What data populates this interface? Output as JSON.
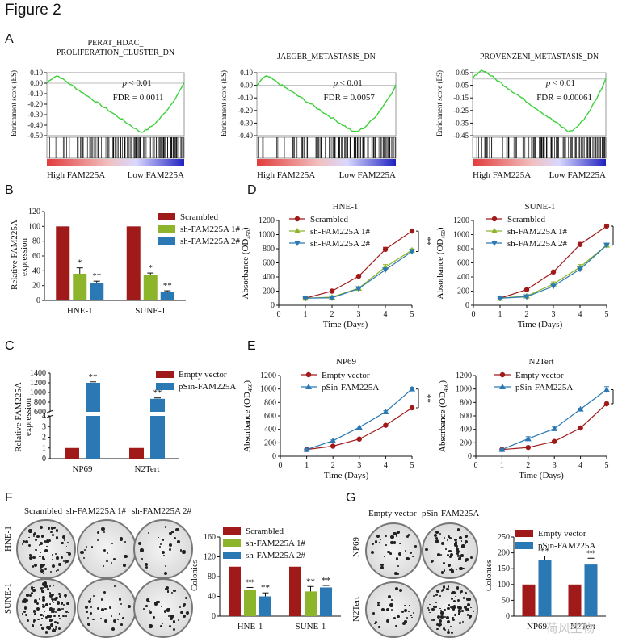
{
  "figure_title": "Figure 2",
  "panels": {
    "A": "A",
    "B": "B",
    "C": "C",
    "D": "D",
    "E": "E",
    "F": "F",
    "G": "G"
  },
  "gsea": [
    {
      "title1": "PERAT_HDAC_",
      "title2": "PROLIFERATION_CLUSTER_DN",
      "yticks": [
        "0.10",
        "0.00",
        "-0.10",
        "-0.20",
        "-0.30",
        "-0.40",
        "-0.50"
      ],
      "ylim": [
        -0.5,
        0.1
      ],
      "p": "< 0.01",
      "fdr": "FDR = 0.0011",
      "high": "High FAM225A",
      "low": "Low FAM225A",
      "ylabel": "Enrichment score (ES)"
    },
    {
      "title1": "",
      "title2": "JAEGER_METASTASIS_DN",
      "yticks": [
        "0.10",
        "0.00",
        "-0.10",
        "-0.20",
        "-0.30",
        "-0.40"
      ],
      "ylim": [
        -0.4,
        0.1
      ],
      "p": "< 0.01",
      "fdr": "FDR = 0.0057",
      "high": "High FAM225A",
      "low": "Low FAM225A",
      "ylabel": "Enrichment score (ES)"
    },
    {
      "title1": "",
      "title2": "PROVENZENI_METASTASIS_DN",
      "yticks": [
        "0.05",
        "-0.05",
        "-0.15",
        "-0.25",
        "-0.35",
        "-0.45"
      ],
      "ylim": [
        -0.45,
        0.05
      ],
      "p": "< 0.01",
      "fdr": "FDR = 0.00061",
      "high": "High FAM225A",
      "low": "Low FAM225A",
      "ylabel": "Enrichment score (ES)"
    }
  ],
  "chart_data": [
    {
      "id": "B",
      "type": "bar",
      "ylabel": "Relative FAM225A expression",
      "categories": [
        "HNE-1",
        "SUNE-1"
      ],
      "ylim": [
        0,
        120
      ],
      "yticks": [
        0,
        20,
        40,
        60,
        80,
        100,
        120
      ],
      "series": [
        {
          "name": "Scrambled",
          "color": "#a01a1a",
          "values": [
            100,
            100
          ],
          "err": [
            0,
            0
          ],
          "sig": [
            "",
            ""
          ]
        },
        {
          "name": "sh-FAM225A 1#",
          "color": "#8db52b",
          "values": [
            36,
            34
          ],
          "err": [
            8,
            3
          ],
          "sig": [
            "*",
            "*"
          ]
        },
        {
          "name": "sh-FAM225A 2#",
          "color": "#2a78b4",
          "values": [
            23,
            12
          ],
          "err": [
            3,
            1
          ],
          "sig": [
            "**",
            "**"
          ]
        }
      ]
    },
    {
      "id": "C",
      "type": "bar",
      "ylabel": "Relative FAM225A expression",
      "categories": [
        "NP69",
        "N2Tert"
      ],
      "yticks_low": [
        "0",
        "1",
        "2",
        "3",
        "4"
      ],
      "yticks_high": [
        "600",
        "800",
        "1000",
        "1200",
        "1400"
      ],
      "series": [
        {
          "name": "Empty vector",
          "color": "#a01a1a",
          "values": [
            1,
            1
          ],
          "sig": [
            "",
            ""
          ]
        },
        {
          "name": "pSin-FAM225A",
          "color": "#2a78b4",
          "values": [
            1200,
            870
          ],
          "err": [
            20,
            18
          ],
          "sig": [
            "**",
            "**"
          ]
        }
      ]
    },
    {
      "id": "D1",
      "type": "line",
      "title": "HNE-1",
      "xlabel": "Time (Days)",
      "ylabel": "Absorbance (OD",
      "ylabel_sub": "450",
      "ylabel_end": ")",
      "x": [
        1,
        2,
        3,
        4,
        5
      ],
      "xlim": [
        0,
        5
      ],
      "ylim": [
        0,
        1200
      ],
      "sig": "**",
      "series": [
        {
          "name": "Scrambled",
          "color": "#a01a1a",
          "marker": "circle",
          "values": [
            100,
            200,
            410,
            790,
            1050
          ],
          "err": [
            10,
            12,
            15,
            30,
            20
          ]
        },
        {
          "name": "sh-FAM225A 1#",
          "color": "#8db52b",
          "marker": "triangle",
          "values": [
            100,
            115,
            240,
            540,
            780
          ],
          "err": [
            10,
            10,
            15,
            35,
            20
          ]
        },
        {
          "name": "sh-FAM225A 2#",
          "color": "#2a78b4",
          "marker": "tridown",
          "values": [
            100,
            105,
            235,
            500,
            760
          ],
          "err": [
            10,
            10,
            12,
            25,
            20
          ]
        }
      ]
    },
    {
      "id": "D2",
      "type": "line",
      "title": "SUNE-1",
      "xlabel": "Time (Days)",
      "ylabel": "Absorbance (OD",
      "ylabel_sub": "450",
      "ylabel_end": ")",
      "x": [
        1,
        2,
        3,
        4,
        5
      ],
      "xlim": [
        0,
        5
      ],
      "ylim": [
        0,
        1200
      ],
      "sig": "**",
      "series": [
        {
          "name": "Scrambled",
          "color": "#a01a1a",
          "marker": "circle",
          "values": [
            100,
            220,
            470,
            860,
            1120
          ],
          "err": [
            10,
            12,
            15,
            30,
            15
          ]
        },
        {
          "name": "sh-FAM225A 1#",
          "color": "#8db52b",
          "marker": "triangle",
          "values": [
            100,
            130,
            300,
            540,
            850
          ],
          "err": [
            10,
            12,
            30,
            35,
            20
          ]
        },
        {
          "name": "sh-FAM225A 2#",
          "color": "#2a78b4",
          "marker": "tridown",
          "values": [
            100,
            120,
            270,
            510,
            850
          ],
          "err": [
            10,
            10,
            20,
            25,
            20
          ]
        }
      ]
    },
    {
      "id": "E1",
      "type": "line",
      "title": "NP69",
      "xlabel": "Time (Days)",
      "ylabel": "Absorbance (OD",
      "ylabel_sub": "450",
      "ylabel_end": ")",
      "x": [
        1,
        2,
        3,
        4,
        5
      ],
      "xlim": [
        0,
        5
      ],
      "ylim": [
        0,
        1200
      ],
      "sig": "**",
      "series": [
        {
          "name": "Empty vector",
          "color": "#a01a1a",
          "marker": "circle",
          "values": [
            100,
            150,
            255,
            460,
            720
          ],
          "err": [
            8,
            10,
            12,
            15,
            15
          ]
        },
        {
          "name": "pSin-FAM225A",
          "color": "#2a78b4",
          "marker": "triangle",
          "values": [
            100,
            230,
            430,
            660,
            1000
          ],
          "err": [
            8,
            12,
            20,
            15,
            25
          ]
        }
      ]
    },
    {
      "id": "E2",
      "type": "line",
      "title": "N2Tert",
      "xlabel": "Time (Days)",
      "ylabel": "Absorbance (OD",
      "ylabel_sub": "450",
      "ylabel_end": ")",
      "x": [
        1,
        2,
        3,
        4,
        5
      ],
      "xlim": [
        0,
        5
      ],
      "ylim": [
        0,
        1200
      ],
      "sig": "**",
      "series": [
        {
          "name": "Empty vector",
          "color": "#a01a1a",
          "marker": "circle",
          "values": [
            100,
            130,
            220,
            420,
            780
          ],
          "err": [
            8,
            10,
            12,
            15,
            40
          ]
        },
        {
          "name": "pSin-FAM225A",
          "color": "#2a78b4",
          "marker": "triangle",
          "values": [
            100,
            260,
            410,
            700,
            990
          ],
          "err": [
            8,
            30,
            25,
            15,
            45
          ]
        }
      ]
    },
    {
      "id": "F",
      "type": "bar",
      "ylabel": "Colonies",
      "categories": [
        "HNE-1",
        "SUNE-1"
      ],
      "ylim": [
        0,
        160
      ],
      "yticks": [
        0,
        40,
        80,
        120,
        160
      ],
      "series": [
        {
          "name": "Scrambled",
          "color": "#a01a1a",
          "values": [
            100,
            100
          ],
          "err": [
            0,
            0
          ],
          "sig": [
            "",
            ""
          ]
        },
        {
          "name": "sh-FAM225A 1#",
          "color": "#8db52b",
          "values": [
            53,
            50
          ],
          "err": [
            5,
            10
          ],
          "sig": [
            "**",
            "**"
          ]
        },
        {
          "name": "sh-FAM225A 2#",
          "color": "#2a78b4",
          "values": [
            40,
            58
          ],
          "err": [
            7,
            4
          ],
          "sig": [
            "**",
            "**"
          ]
        }
      ]
    },
    {
      "id": "G",
      "type": "bar",
      "ylabel": "Colonies",
      "categories": [
        "NP69",
        "N2Tert"
      ],
      "ylim": [
        0,
        250
      ],
      "yticks": [
        0,
        50,
        100,
        150,
        200,
        250
      ],
      "series": [
        {
          "name": "Empty vector",
          "color": "#a01a1a",
          "values": [
            100,
            100
          ],
          "err": [
            0,
            0
          ],
          "sig": [
            "",
            ""
          ]
        },
        {
          "name": "pSin-FAM225A",
          "color": "#2a78b4",
          "values": [
            178,
            163
          ],
          "err": [
            12,
            20
          ],
          "sig": [
            "**",
            "**"
          ]
        }
      ]
    }
  ],
  "colony_F": {
    "headers": [
      "Scrambled",
      "sh-FAM225A 1#",
      "sh-FAM225A 2#"
    ],
    "rows": [
      "HNE-1",
      "SUNE-1"
    ]
  },
  "colony_G": {
    "headers": [
      "Empty vector",
      "pSin-FAM225A"
    ],
    "rows": [
      "NP69",
      "N2Tert"
    ]
  },
  "watermark": "荷风生物"
}
